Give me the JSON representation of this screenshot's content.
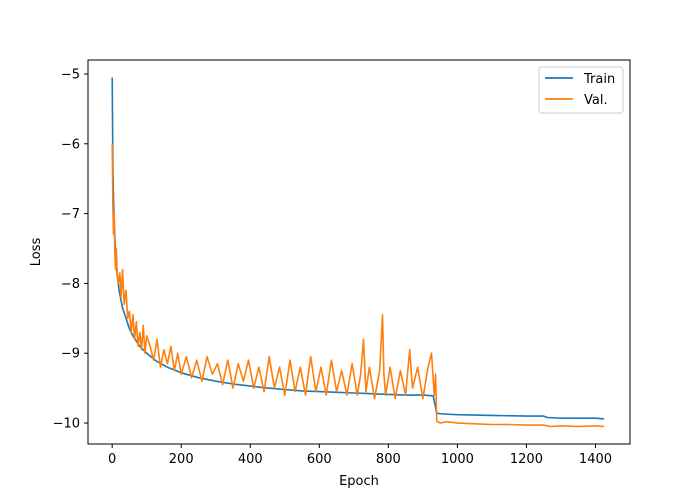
{
  "chart_data": {
    "type": "line",
    "title": "",
    "xlabel": "Epoch",
    "ylabel": "Loss",
    "xlim": [
      -70,
      1500
    ],
    "ylim": [
      -10.3,
      -4.8
    ],
    "xticks": [
      0,
      200,
      400,
      600,
      800,
      1000,
      1200,
      1400
    ],
    "yticks": [
      -10,
      -9,
      -8,
      -7,
      -6,
      -5
    ],
    "xtick_labels": [
      "0",
      "200",
      "400",
      "600",
      "800",
      "1000",
      "1200",
      "1400"
    ],
    "ytick_labels": [
      "−10",
      "−9",
      "−8",
      "−7",
      "−6",
      "−5"
    ],
    "grid": false,
    "legend_position": "top-right",
    "series": [
      {
        "name": "Train",
        "color": "#1f77b4",
        "x": [
          0,
          2,
          5,
          10,
          15,
          20,
          30,
          40,
          50,
          60,
          80,
          100,
          130,
          160,
          200,
          250,
          300,
          350,
          400,
          450,
          500,
          550,
          600,
          650,
          700,
          750,
          800,
          850,
          900,
          930,
          940,
          960,
          1000,
          1100,
          1200,
          1250,
          1260,
          1300,
          1350,
          1400,
          1425
        ],
        "y": [
          -5.05,
          -6.4,
          -7.0,
          -7.6,
          -7.9,
          -8.1,
          -8.35,
          -8.5,
          -8.65,
          -8.75,
          -8.9,
          -9.0,
          -9.12,
          -9.2,
          -9.28,
          -9.35,
          -9.4,
          -9.44,
          -9.47,
          -9.5,
          -9.52,
          -9.54,
          -9.55,
          -9.56,
          -9.57,
          -9.58,
          -9.59,
          -9.6,
          -9.6,
          -9.61,
          -9.86,
          -9.87,
          -9.88,
          -9.89,
          -9.9,
          -9.9,
          -9.92,
          -9.93,
          -9.93,
          -9.93,
          -9.94
        ]
      },
      {
        "name": "Val.",
        "color": "#ff7f0e",
        "x": [
          0,
          2,
          4,
          6,
          8,
          10,
          12,
          15,
          18,
          22,
          26,
          30,
          35,
          40,
          45,
          50,
          55,
          60,
          65,
          70,
          75,
          80,
          85,
          90,
          95,
          100,
          110,
          120,
          130,
          140,
          150,
          160,
          170,
          180,
          190,
          200,
          215,
          230,
          245,
          260,
          275,
          290,
          305,
          320,
          335,
          350,
          365,
          380,
          395,
          410,
          425,
          440,
          455,
          470,
          485,
          500,
          515,
          530,
          545,
          560,
          575,
          590,
          605,
          620,
          635,
          650,
          665,
          680,
          695,
          710,
          720,
          728,
          735,
          745,
          760,
          775,
          783,
          787,
          792,
          805,
          820,
          835,
          850,
          862,
          870,
          885,
          900,
          915,
          925,
          933,
          937,
          940,
          950,
          970,
          1000,
          1050,
          1100,
          1150,
          1200,
          1250,
          1270,
          1300,
          1350,
          1400,
          1425
        ],
        "y": [
          -6.0,
          -6.9,
          -7.3,
          -7.0,
          -7.6,
          -7.8,
          -7.5,
          -7.9,
          -8.0,
          -7.85,
          -8.2,
          -7.8,
          -8.3,
          -8.1,
          -8.5,
          -8.4,
          -8.7,
          -8.45,
          -8.8,
          -8.55,
          -8.9,
          -8.7,
          -8.95,
          -8.6,
          -9.0,
          -8.75,
          -8.9,
          -9.1,
          -8.8,
          -9.2,
          -8.95,
          -9.15,
          -8.9,
          -9.25,
          -9.0,
          -9.3,
          -9.05,
          -9.35,
          -9.1,
          -9.4,
          -9.05,
          -9.3,
          -9.15,
          -9.45,
          -9.1,
          -9.5,
          -9.15,
          -9.4,
          -9.1,
          -9.5,
          -9.2,
          -9.55,
          -9.05,
          -9.5,
          -9.2,
          -9.6,
          -9.1,
          -9.55,
          -9.2,
          -9.6,
          -9.05,
          -9.55,
          -9.2,
          -9.6,
          -9.1,
          -9.55,
          -9.25,
          -9.6,
          -9.15,
          -9.6,
          -9.3,
          -8.8,
          -9.55,
          -9.2,
          -9.65,
          -9.25,
          -8.45,
          -9.3,
          -9.6,
          -9.2,
          -9.65,
          -9.25,
          -9.6,
          -8.95,
          -9.5,
          -9.2,
          -9.65,
          -9.2,
          -9.0,
          -9.6,
          -9.3,
          -9.97,
          -10.0,
          -9.98,
          -10.0,
          -10.01,
          -10.02,
          -10.02,
          -10.03,
          -10.03,
          -10.05,
          -10.04,
          -10.05,
          -10.04,
          -10.05
        ]
      }
    ]
  }
}
